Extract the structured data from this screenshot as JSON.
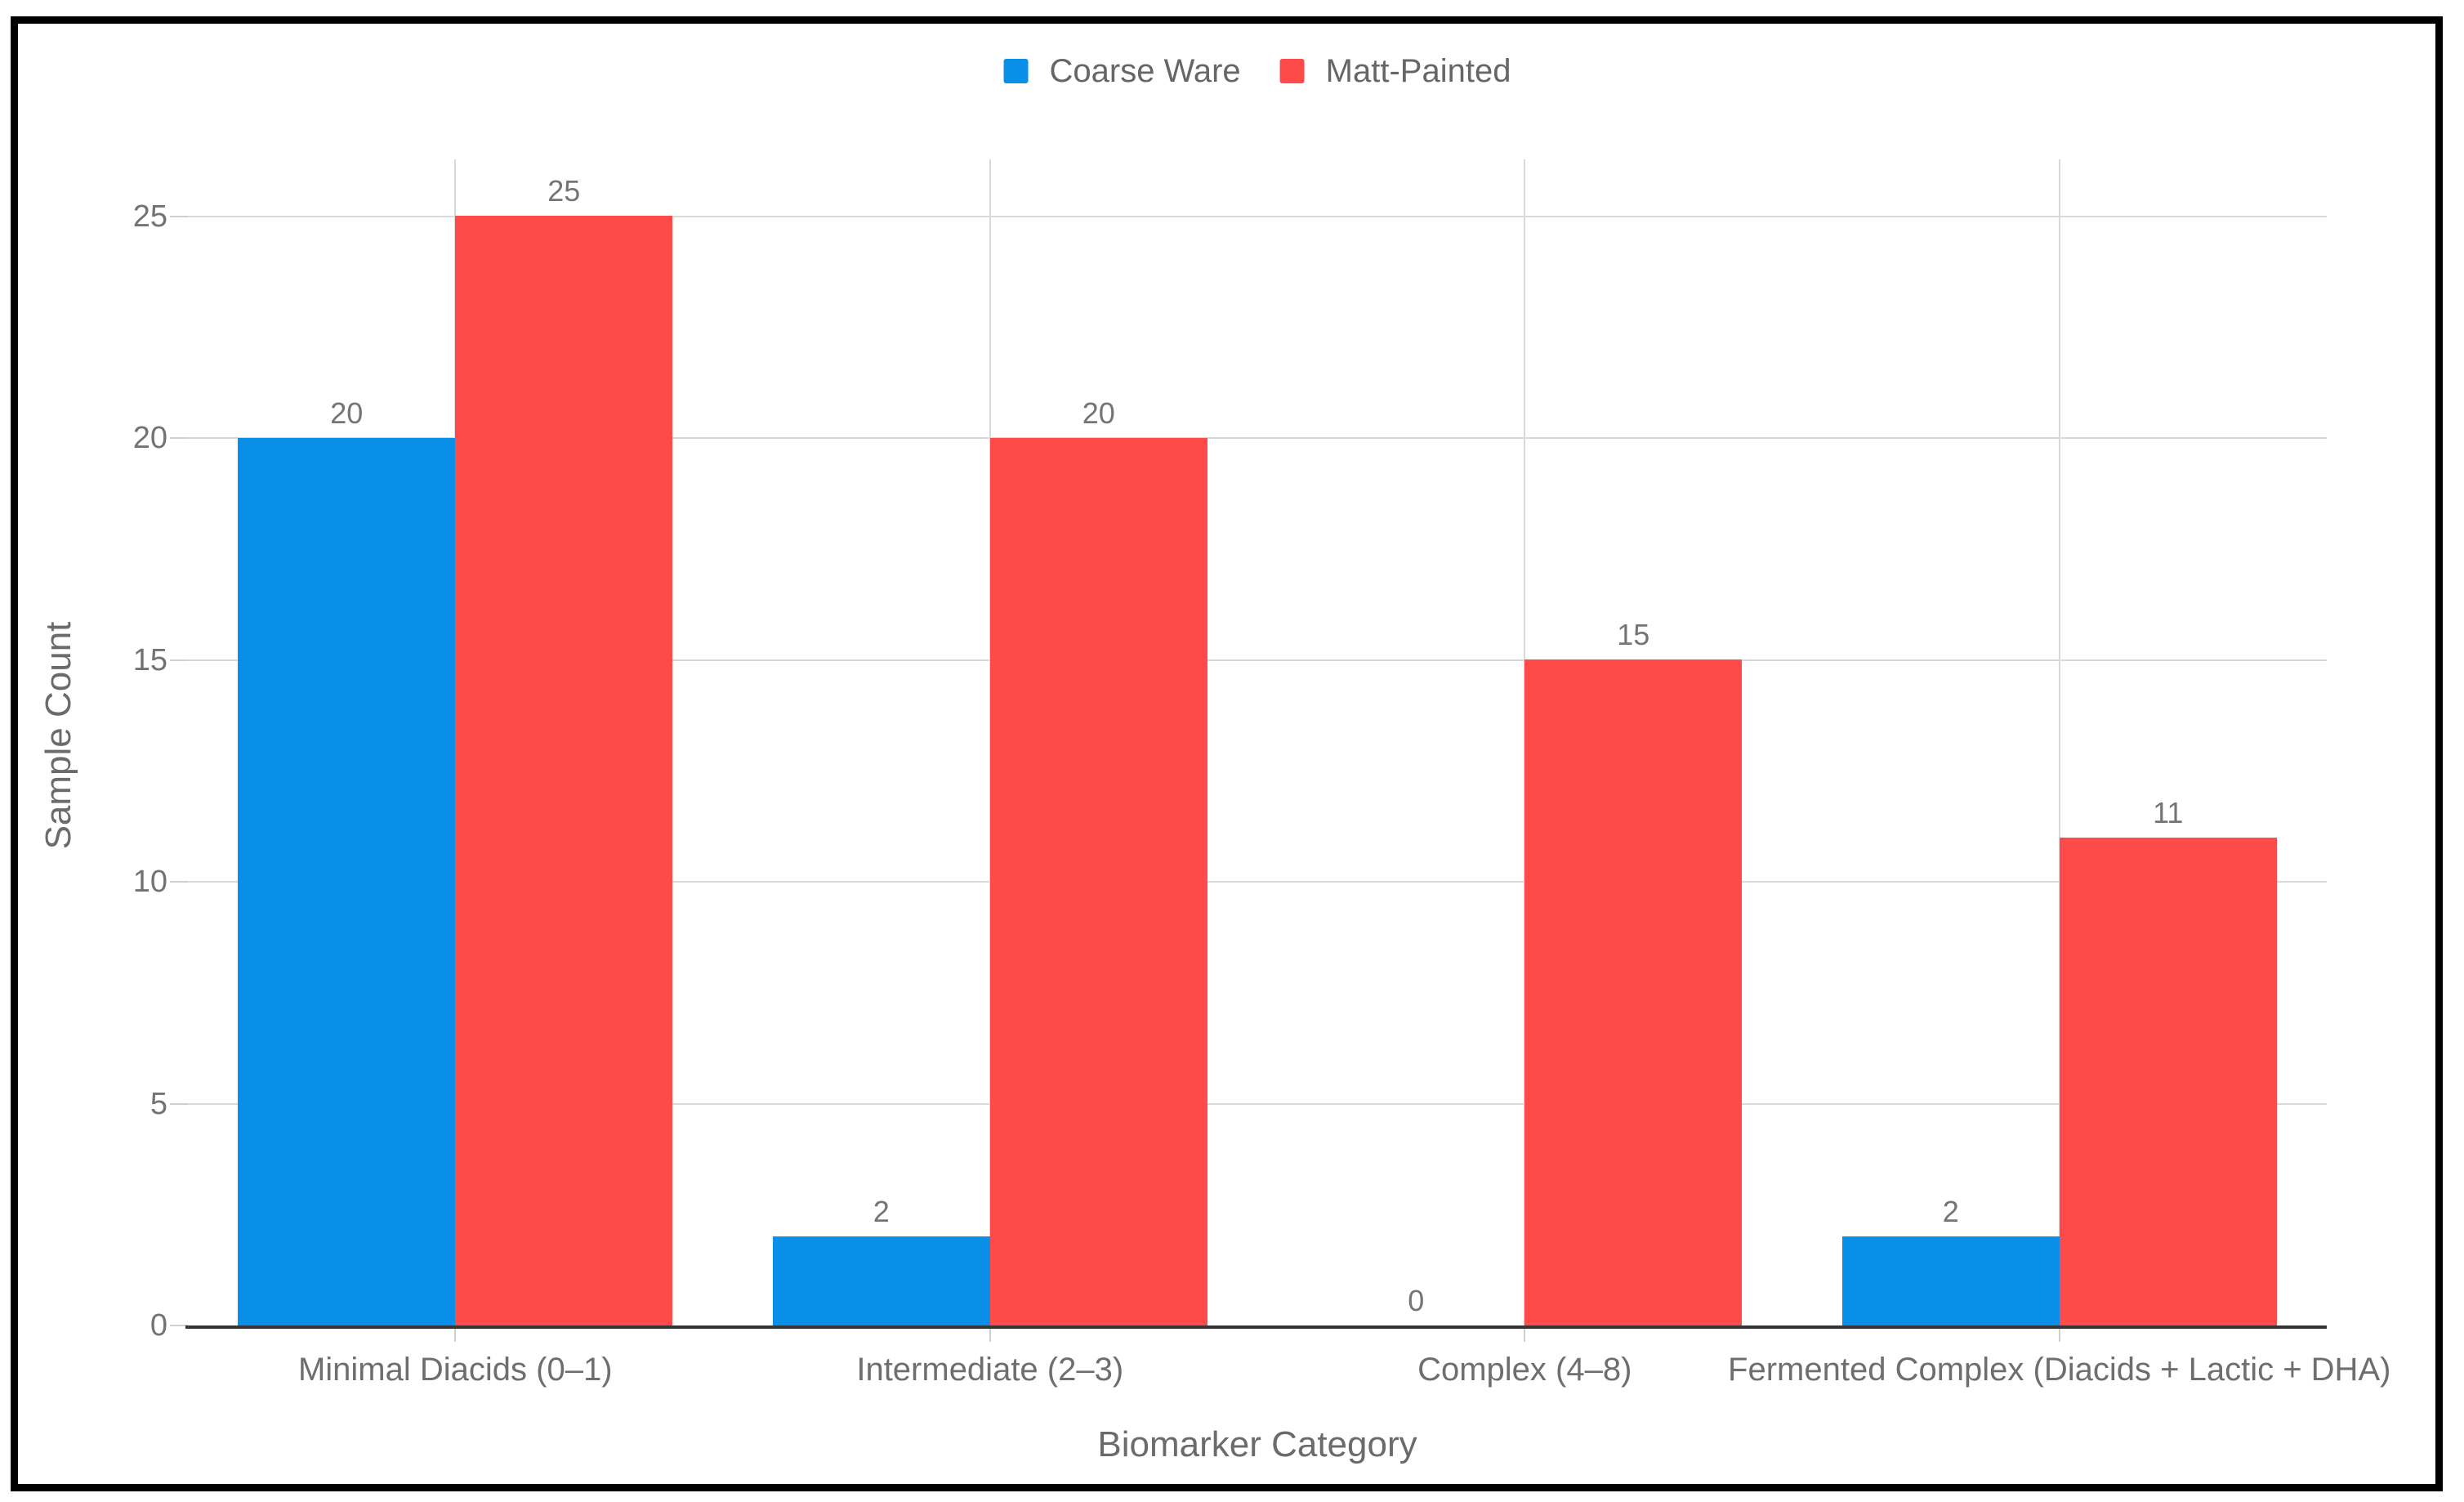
{
  "chart_data": {
    "type": "bar",
    "categories": [
      "Minimal Diacids (0–1)",
      "Intermediate (2–3)",
      "Complex (4–8)",
      "Fermented Complex (Diacids + Lactic + DHA)"
    ],
    "series": [
      {
        "name": "Coarse Ware",
        "color": "#0a8fe8",
        "values": [
          20,
          2,
          0,
          2
        ]
      },
      {
        "name": "Matt-Painted",
        "color": "#ff4a4a",
        "values": [
          25,
          20,
          15,
          11
        ]
      }
    ],
    "title": "",
    "xlabel": "Biomarker Category",
    "ylabel": "Sample Count",
    "yticks": [
      0,
      5,
      10,
      15,
      20,
      25
    ],
    "ylim": [
      0,
      26.3
    ],
    "grid": true,
    "legend_position": "top-center",
    "value_labels": true
  },
  "theme": {
    "series_blue": "#0a8fe8",
    "series_red": "#ff4a4a",
    "grid_color": "#d9d9d9",
    "tick_color": "#cfcfcf",
    "axis_line_color": "#343537",
    "label_color": "#757575",
    "frame_border_color": "#000000",
    "background": "#ffffff"
  }
}
